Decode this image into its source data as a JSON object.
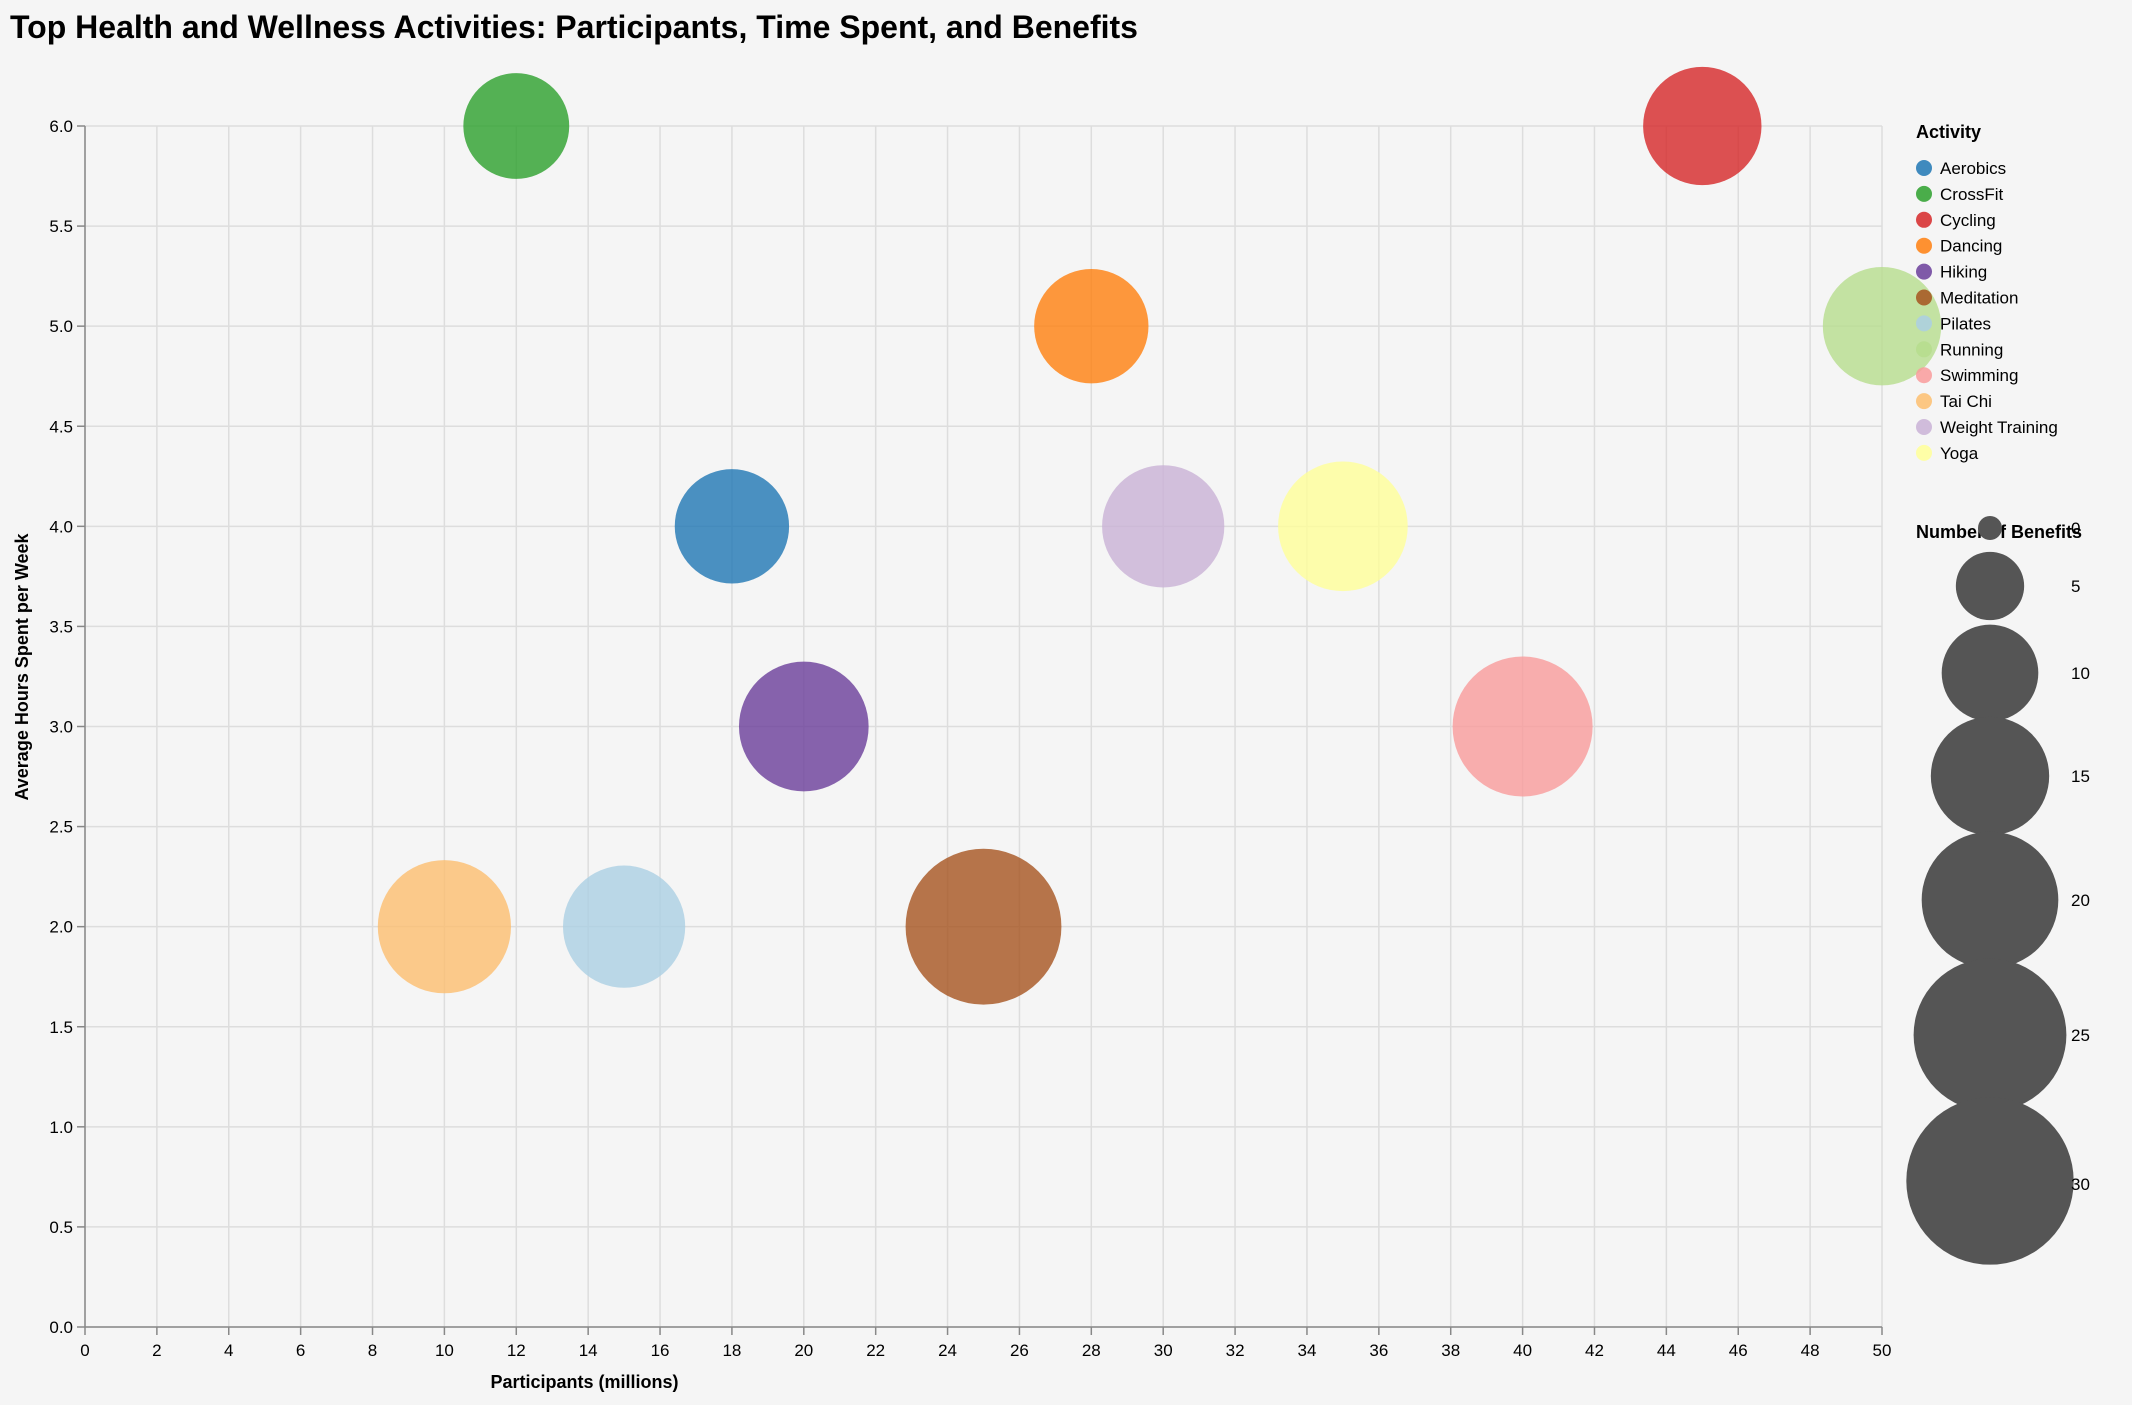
{
  "chart_data": {
    "type": "scatter",
    "title": "Top Health and Wellness Activities: Participants, Time Spent, and Benefits",
    "xlabel": "Participants (millions)",
    "ylabel": "Average Hours Spent per Week",
    "xlim": [
      0,
      50
    ],
    "ylim": [
      0,
      6
    ],
    "x_ticks": [
      "0",
      "2",
      "4",
      "6",
      "8",
      "10",
      "12",
      "14",
      "16",
      "18",
      "20",
      "22",
      "24",
      "26",
      "28",
      "30",
      "32",
      "34",
      "36",
      "38",
      "40",
      "42",
      "44",
      "46",
      "48",
      "50"
    ],
    "y_ticks": [
      "0.0",
      "0.5",
      "1.0",
      "1.5",
      "2.0",
      "2.5",
      "3.0",
      "3.5",
      "4.0",
      "4.5",
      "5.0",
      "5.5",
      "6.0"
    ],
    "grid": true,
    "legend_placement": "right",
    "color_legend_title": "Activity",
    "size_legend_title": "Number of Benefits",
    "size_legend_values": [
      "0",
      "5",
      "10",
      "15",
      "20",
      "25",
      "30"
    ],
    "size_scale_domain": [
      0,
      30
    ],
    "legend_entries": [
      {
        "name": "Aerobics",
        "color": "#1f77b4"
      },
      {
        "name": "CrossFit",
        "color": "#2ca02c"
      },
      {
        "name": "Cycling",
        "color": "#d62728"
      },
      {
        "name": "Dancing",
        "color": "#ff7f0e"
      },
      {
        "name": "Hiking",
        "color": "#6a3d9a"
      },
      {
        "name": "Meditation",
        "color": "#a6541f"
      },
      {
        "name": "Pilates",
        "color": "#abcfe3"
      },
      {
        "name": "Running",
        "color": "#b6dd8d"
      },
      {
        "name": "Swimming",
        "color": "#f99b9b"
      },
      {
        "name": "Tai Chi",
        "color": "#fdbe6f"
      },
      {
        "name": "Weight Training",
        "color": "#c9b2d6"
      },
      {
        "name": "Yoga",
        "color": "#ffff99"
      }
    ],
    "points": [
      {
        "name": "CrossFit",
        "x": 12,
        "y": 6,
        "benefits": 12
      },
      {
        "name": "Cycling",
        "x": 45,
        "y": 6,
        "benefits": 15
      },
      {
        "name": "Dancing",
        "x": 28,
        "y": 5,
        "benefits": 14
      },
      {
        "name": "Running",
        "x": 50,
        "y": 5,
        "benefits": 15
      },
      {
        "name": "Aerobics",
        "x": 18,
        "y": 4,
        "benefits": 14
      },
      {
        "name": "Weight Training",
        "x": 30,
        "y": 4,
        "benefits": 16
      },
      {
        "name": "Yoga",
        "x": 35,
        "y": 4,
        "benefits": 18
      },
      {
        "name": "Hiking",
        "x": 20,
        "y": 3,
        "benefits": 18
      },
      {
        "name": "Swimming",
        "x": 40,
        "y": 3,
        "benefits": 21
      },
      {
        "name": "Tai Chi",
        "x": 10,
        "y": 2,
        "benefits": 19
      },
      {
        "name": "Pilates",
        "x": 15,
        "y": 2,
        "benefits": 16
      },
      {
        "name": "Meditation",
        "x": 25,
        "y": 2,
        "benefits": 26
      }
    ]
  }
}
